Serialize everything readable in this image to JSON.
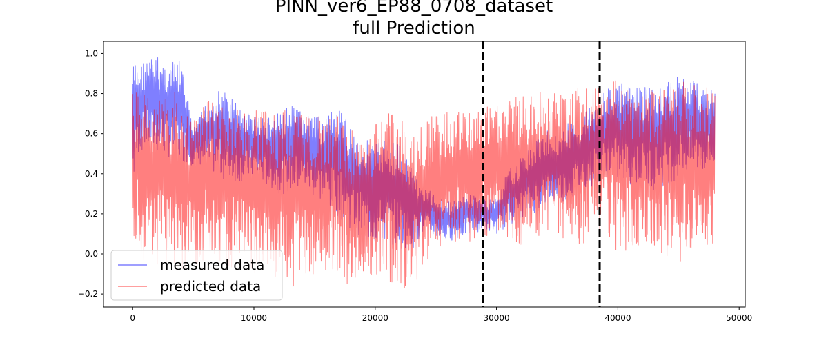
{
  "chart_data": {
    "type": "line",
    "title": "PINN_ver6_EP88_0708_dataset",
    "subtitle": "full Prediction",
    "xlabel": "",
    "ylabel": "",
    "xlim": [
      -2400,
      50500
    ],
    "ylim": [
      -0.265,
      1.06
    ],
    "x_ticks": [
      0,
      10000,
      20000,
      30000,
      40000,
      50000
    ],
    "y_ticks": [
      -0.2,
      0.0,
      0.2,
      0.4,
      0.6,
      0.8,
      1.0
    ],
    "x_tick_labels": [
      "0",
      "10000",
      "20000",
      "30000",
      "40000",
      "50000"
    ],
    "y_tick_labels": [
      "−0.2",
      "0.0",
      "0.2",
      "0.4",
      "0.6",
      "0.8",
      "1.0"
    ],
    "grid": false,
    "legend_position": "lower-left",
    "vlines": [
      {
        "x": 28900,
        "style": "dashed",
        "color": "#000000"
      },
      {
        "x": 38500,
        "style": "dashed",
        "color": "#000000"
      }
    ],
    "series": [
      {
        "name": "measured data",
        "color": "#0000ff",
        "opacity": 0.5,
        "x": [
          0,
          500,
          1000,
          2000,
          3000,
          4000,
          5000,
          6000,
          7000,
          8000,
          9000,
          10000,
          11000,
          12000,
          13000,
          14000,
          15000,
          16000,
          17000,
          18000,
          19000,
          20000,
          21000,
          22000,
          23000,
          24000,
          25000,
          26000,
          27000,
          28000,
          29000,
          30000,
          31000,
          32000,
          33000,
          34000,
          35000,
          36000,
          37000,
          38000,
          39000,
          40000,
          41000,
          42000,
          43000,
          44000,
          45000,
          46000,
          47000,
          48000
        ],
        "high": [
          0.96,
          0.95,
          0.97,
          0.99,
          0.95,
          0.97,
          0.62,
          0.75,
          0.82,
          0.8,
          0.72,
          0.7,
          0.68,
          0.7,
          0.74,
          0.72,
          0.68,
          0.7,
          0.72,
          0.64,
          0.58,
          0.56,
          0.58,
          0.56,
          0.44,
          0.33,
          0.3,
          0.26,
          0.28,
          0.3,
          0.27,
          0.28,
          0.42,
          0.48,
          0.55,
          0.62,
          0.6,
          0.66,
          0.68,
          0.78,
          0.82,
          0.86,
          0.83,
          0.84,
          0.82,
          0.85,
          0.9,
          0.88,
          0.86,
          0.82
        ],
        "low": [
          0.3,
          0.5,
          0.52,
          0.5,
          0.48,
          0.46,
          0.44,
          0.44,
          0.38,
          0.36,
          0.36,
          0.38,
          0.34,
          0.3,
          0.3,
          0.32,
          0.28,
          0.24,
          0.18,
          0.12,
          0.08,
          0.04,
          0.05,
          0.04,
          0.02,
          0.1,
          0.08,
          0.06,
          0.08,
          0.1,
          0.12,
          0.1,
          0.14,
          0.18,
          0.2,
          0.24,
          0.26,
          0.26,
          0.32,
          0.34,
          0.38,
          0.36,
          0.34,
          0.34,
          0.32,
          0.34,
          0.38,
          0.4,
          0.4,
          0.42
        ]
      },
      {
        "name": "predicted data",
        "color": "#ff0000",
        "opacity": 0.5,
        "x": [
          0,
          500,
          1000,
          2000,
          3000,
          4000,
          5000,
          6000,
          7000,
          8000,
          9000,
          10000,
          11000,
          12000,
          13000,
          14000,
          15000,
          16000,
          17000,
          18000,
          19000,
          20000,
          21000,
          22000,
          23000,
          24000,
          25000,
          26000,
          27000,
          28000,
          29000,
          30000,
          31000,
          32000,
          33000,
          34000,
          35000,
          36000,
          37000,
          38000,
          39000,
          40000,
          41000,
          42000,
          43000,
          44000,
          45000,
          46000,
          47000,
          48000
        ],
        "high": [
          0.8,
          0.82,
          0.8,
          0.78,
          0.8,
          0.82,
          0.66,
          0.76,
          0.8,
          0.76,
          0.74,
          0.72,
          0.72,
          0.7,
          0.74,
          0.76,
          0.7,
          0.68,
          0.7,
          0.62,
          0.58,
          0.66,
          0.7,
          0.7,
          0.6,
          0.66,
          0.7,
          0.72,
          0.72,
          0.74,
          0.74,
          0.76,
          0.78,
          0.8,
          0.8,
          0.82,
          0.82,
          0.84,
          0.84,
          0.84,
          0.84,
          0.88,
          0.86,
          0.84,
          0.82,
          0.84,
          0.86,
          0.86,
          0.84,
          0.82
        ],
        "low": [
          0.1,
          0.0,
          -0.04,
          -0.06,
          -0.08,
          -0.12,
          -0.08,
          -0.02,
          -0.06,
          -0.06,
          -0.1,
          -0.12,
          -0.1,
          -0.14,
          -0.16,
          -0.18,
          -0.14,
          -0.08,
          -0.14,
          -0.18,
          -0.12,
          -0.1,
          -0.14,
          -0.16,
          -0.2,
          -0.04,
          0.0,
          0.04,
          0.04,
          0.06,
          0.08,
          0.1,
          0.08,
          0.04,
          0.04,
          0.08,
          0.06,
          0.02,
          0.04,
          0.06,
          0.04,
          0.0,
          0.02,
          0.04,
          0.02,
          -0.02,
          -0.06,
          0.0,
          0.04,
          0.04
        ]
      }
    ]
  }
}
